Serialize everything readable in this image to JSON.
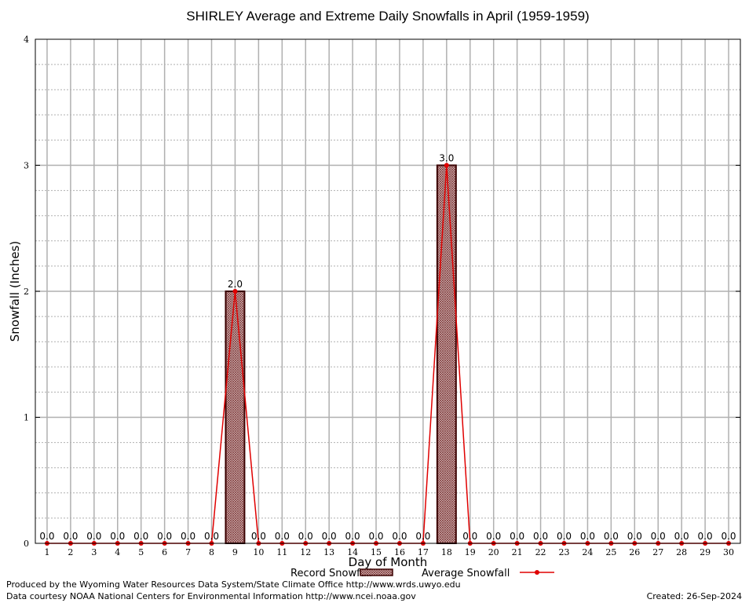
{
  "chart_data": {
    "type": "bar",
    "title": "SHIRLEY Average and Extreme Daily Snowfalls in April (1959-1959)",
    "xlabel": "Day of Month",
    "ylabel": "Snowfall (Inches)",
    "ylim": [
      0,
      4
    ],
    "yticks": [
      "0",
      "1",
      "2",
      "3",
      "4"
    ],
    "categories": [
      "1",
      "2",
      "3",
      "4",
      "5",
      "6",
      "7",
      "8",
      "9",
      "10",
      "11",
      "12",
      "13",
      "14",
      "15",
      "16",
      "17",
      "18",
      "19",
      "20",
      "21",
      "22",
      "23",
      "24",
      "25",
      "26",
      "27",
      "28",
      "29",
      "30"
    ],
    "series": [
      {
        "name": "Record Snowfall",
        "type": "bar",
        "values": [
          0,
          0,
          0,
          0,
          0,
          0,
          0,
          0,
          2.0,
          0,
          0,
          0,
          0,
          0,
          0,
          0,
          0,
          3.0,
          0,
          0,
          0,
          0,
          0,
          0,
          0,
          0,
          0,
          0,
          0,
          0
        ]
      },
      {
        "name": "Average Snowfall",
        "type": "line",
        "values": [
          0,
          0,
          0,
          0,
          0,
          0,
          0,
          0,
          2.0,
          0,
          0,
          0,
          0,
          0,
          0,
          0,
          0,
          3.0,
          0,
          0,
          0,
          0,
          0,
          0,
          0,
          0,
          0,
          0,
          0,
          0
        ]
      }
    ],
    "data_labels": [
      "0.0",
      "0.0",
      "0.0",
      "0.0",
      "0.0",
      "0.0",
      "0.0",
      "0.0",
      "2.0",
      "0.0",
      "0.0",
      "0.0",
      "0.0",
      "0.0",
      "0.0",
      "0.0",
      "0.0",
      "3.0",
      "0.0",
      "0.0",
      "0.0",
      "0.0",
      "0.0",
      "0.0",
      "0.0",
      "0.0",
      "0.0",
      "0.0",
      "0.0",
      "0.0"
    ],
    "grid": true,
    "legend_position": "bottom",
    "colors": {
      "bar_fill": "#b89090",
      "bar_edge": "#3a0000",
      "line": "#e00000",
      "grid_major": "#b0b0b0",
      "grid_minor": "#b0b0b0"
    }
  },
  "footer": {
    "produced_by": "Produced by the Wyoming Water Resources Data System/State Climate Office http://www.wrds.uwyo.edu",
    "data_courtesy": "Data courtesy NOAA National Centers for Environmental Information http://www.ncei.noaa.gov",
    "created": "Created:  26-Sep-2024"
  }
}
